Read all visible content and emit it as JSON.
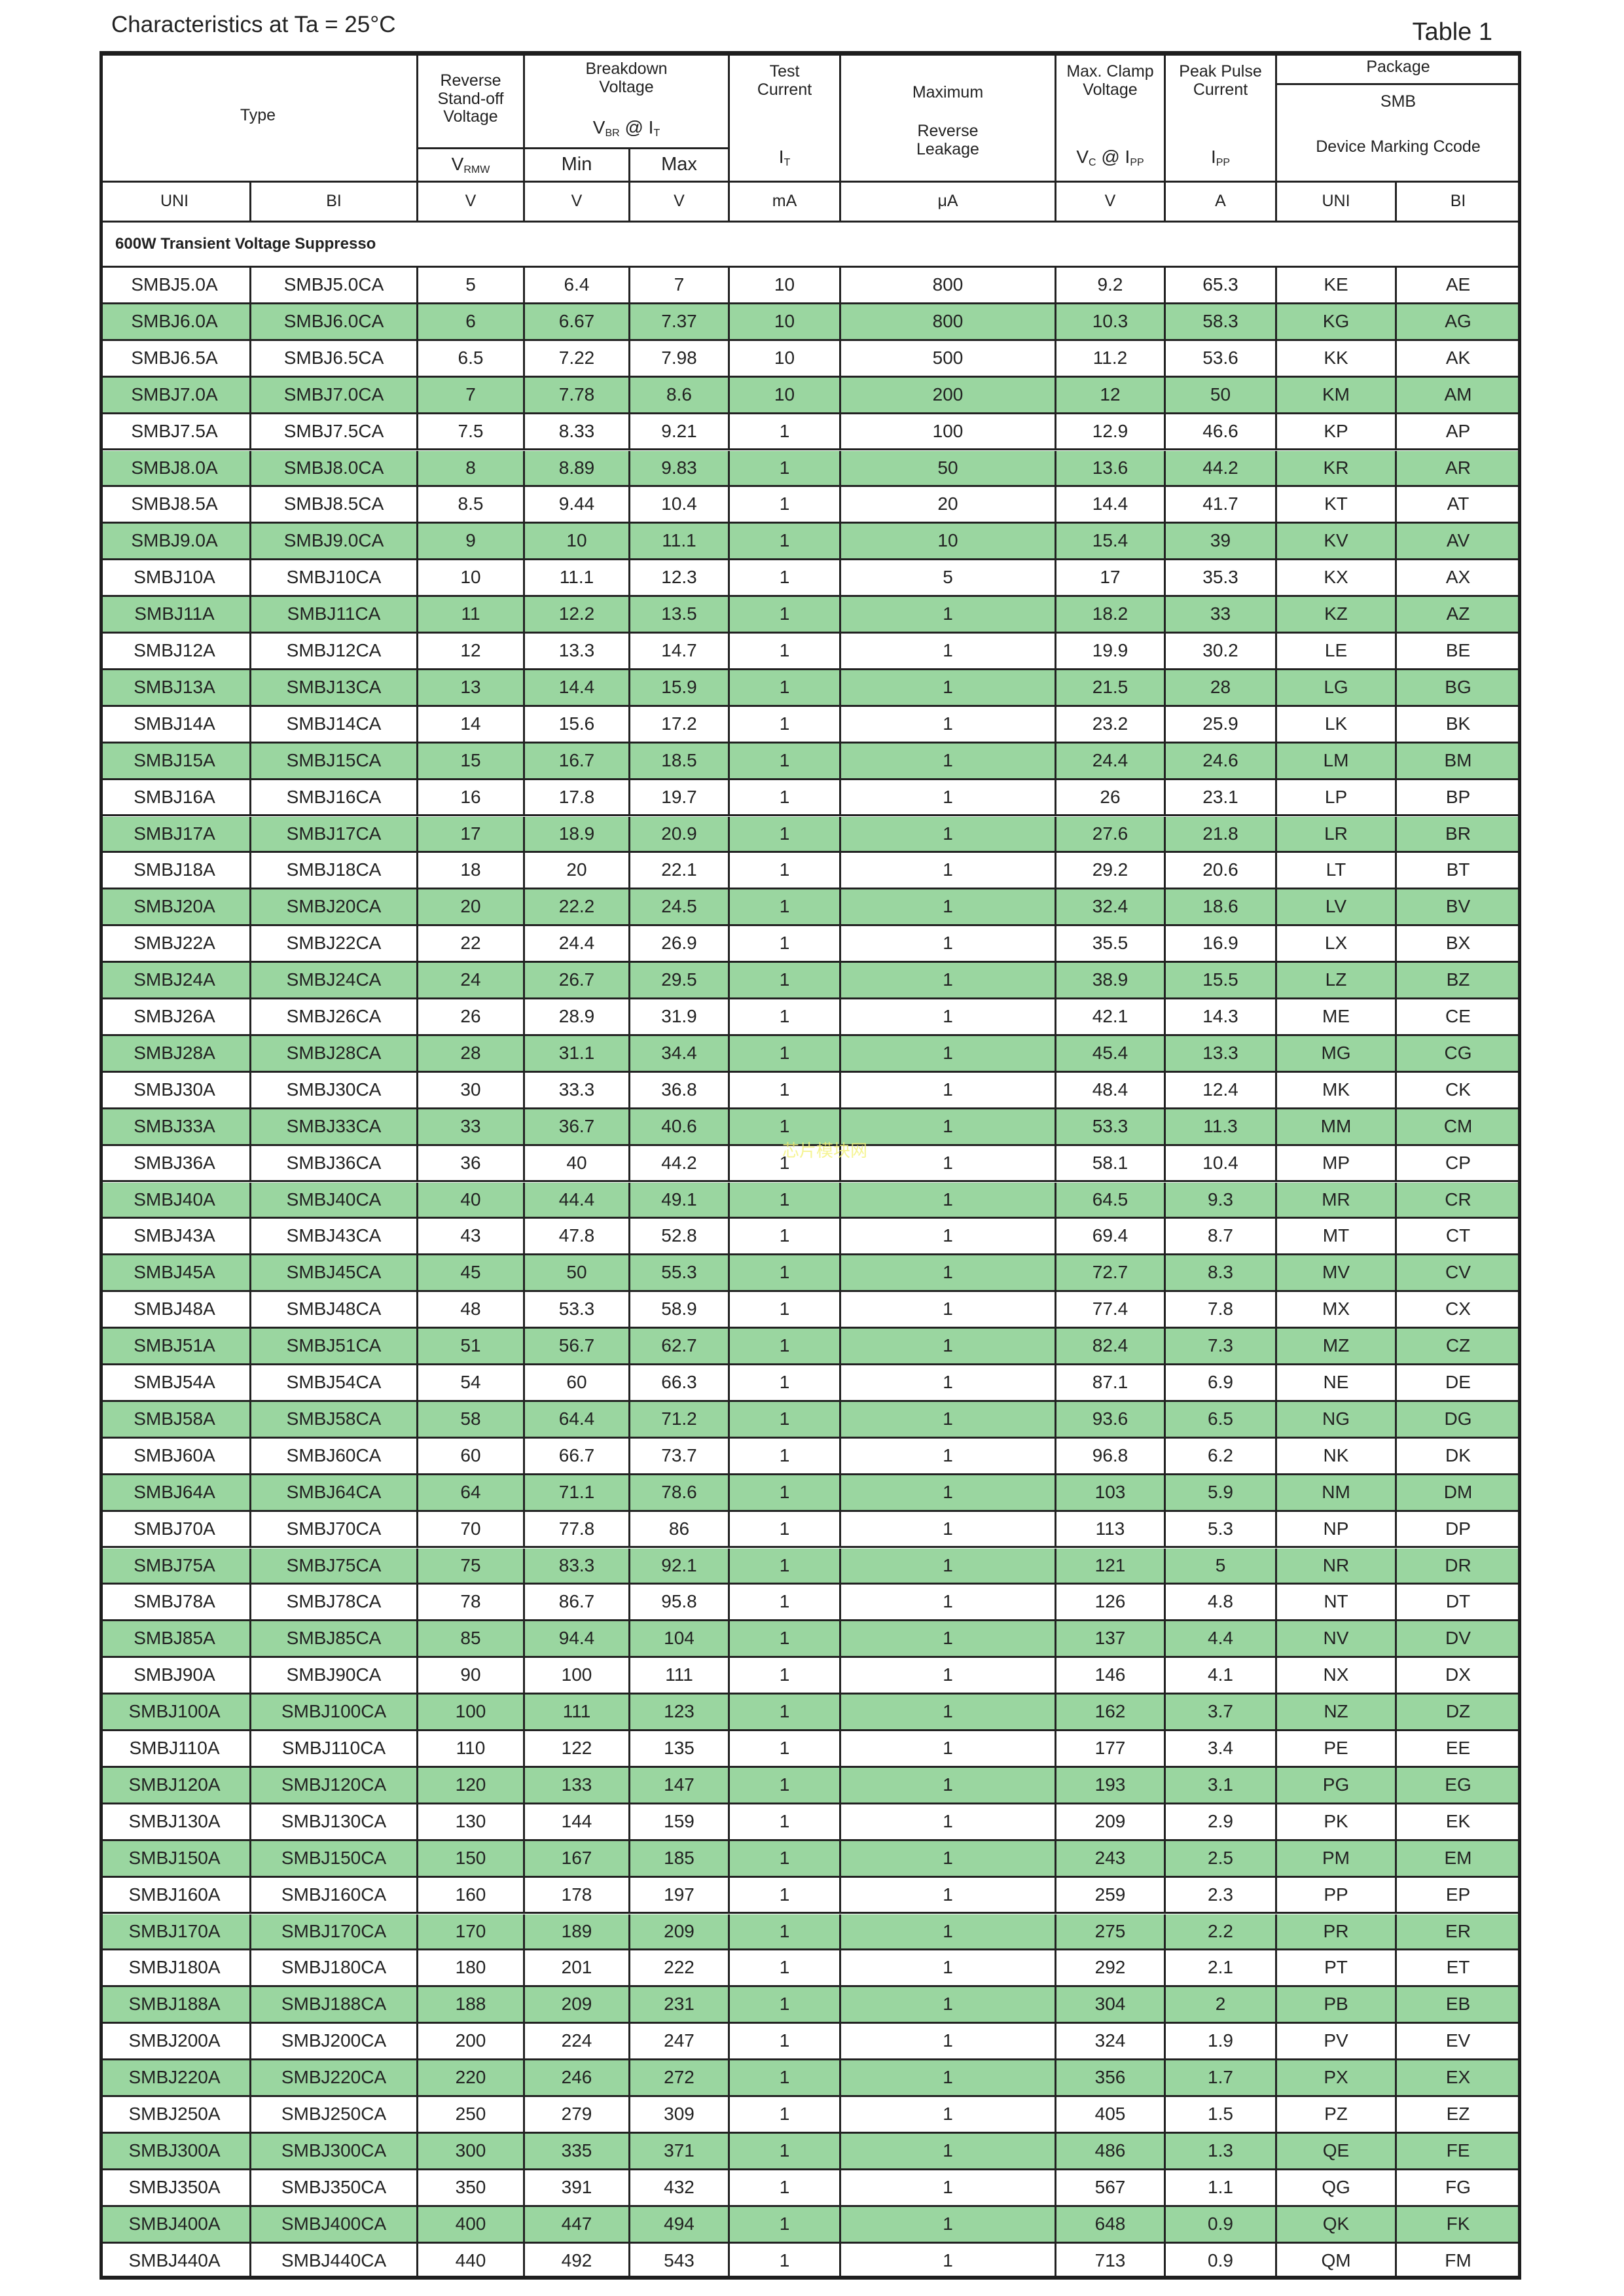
{
  "title": "Characteristics at Ta = 25°C",
  "table_label": "Table 1",
  "watermark": "芯片模块网",
  "colors": {
    "row_highlight": "#9ad6a0",
    "border": "#222222"
  },
  "header": {
    "type": "Type",
    "reverse_standoff": [
      "Reverse",
      "Stand-off",
      "Voltage"
    ],
    "vrwm": {
      "main": "V",
      "sub": "RMW"
    },
    "breakdown": [
      "Breakdown",
      "Voltage"
    ],
    "vbr_at_it": {
      "v": "V",
      "v_sub": "BR",
      "at": " @ ",
      "i": "I",
      "i_sub": "T"
    },
    "min": "Min",
    "max": "Max",
    "test_current": [
      "Test",
      "Current"
    ],
    "it": {
      "main": "I",
      "sub": "T"
    },
    "max_leakage_top": "Maximum",
    "max_leakage_bottom": [
      "Reverse",
      "Leakage"
    ],
    "clamp": [
      "Max. Clamp",
      "Voltage"
    ],
    "vc_at_ipp": {
      "v": "V",
      "v_sub": "C",
      "at": " @ ",
      "i": "I",
      "i_sub": "PP"
    },
    "peak_pulse": [
      "Peak Pulse",
      "Current"
    ],
    "ipp": {
      "main": "I",
      "sub": "PP"
    },
    "package": "Package",
    "smb": "SMB",
    "marking": "Device Marking Ccode"
  },
  "units": [
    "UNI",
    "BI",
    "V",
    "V",
    "V",
    "mA",
    "μA",
    "V",
    "A",
    "UNI",
    "BI"
  ],
  "section": "600W Transient Voltage Suppresso",
  "rows": [
    [
      "SMBJ5.0A",
      "SMBJ5.0CA",
      "5",
      "6.4",
      "7",
      "10",
      "800",
      "9.2",
      "65.3",
      "KE",
      "AE"
    ],
    [
      "SMBJ6.0A",
      "SMBJ6.0CA",
      "6",
      "6.67",
      "7.37",
      "10",
      "800",
      "10.3",
      "58.3",
      "KG",
      "AG"
    ],
    [
      "SMBJ6.5A",
      "SMBJ6.5CA",
      "6.5",
      "7.22",
      "7.98",
      "10",
      "500",
      "11.2",
      "53.6",
      "KK",
      "AK"
    ],
    [
      "SMBJ7.0A",
      "SMBJ7.0CA",
      "7",
      "7.78",
      "8.6",
      "10",
      "200",
      "12",
      "50",
      "KM",
      "AM"
    ],
    [
      "SMBJ7.5A",
      "SMBJ7.5CA",
      "7.5",
      "8.33",
      "9.21",
      "1",
      "100",
      "12.9",
      "46.6",
      "KP",
      "AP"
    ],
    [
      "SMBJ8.0A",
      "SMBJ8.0CA",
      "8",
      "8.89",
      "9.83",
      "1",
      "50",
      "13.6",
      "44.2",
      "KR",
      "AR"
    ],
    [
      "SMBJ8.5A",
      "SMBJ8.5CA",
      "8.5",
      "9.44",
      "10.4",
      "1",
      "20",
      "14.4",
      "41.7",
      "KT",
      "AT"
    ],
    [
      "SMBJ9.0A",
      "SMBJ9.0CA",
      "9",
      "10",
      "11.1",
      "1",
      "10",
      "15.4",
      "39",
      "KV",
      "AV"
    ],
    [
      "SMBJ10A",
      "SMBJ10CA",
      "10",
      "11.1",
      "12.3",
      "1",
      "5",
      "17",
      "35.3",
      "KX",
      "AX"
    ],
    [
      "SMBJ11A",
      "SMBJ11CA",
      "11",
      "12.2",
      "13.5",
      "1",
      "1",
      "18.2",
      "33",
      "KZ",
      "AZ"
    ],
    [
      "SMBJ12A",
      "SMBJ12CA",
      "12",
      "13.3",
      "14.7",
      "1",
      "1",
      "19.9",
      "30.2",
      "LE",
      "BE"
    ],
    [
      "SMBJ13A",
      "SMBJ13CA",
      "13",
      "14.4",
      "15.9",
      "1",
      "1",
      "21.5",
      "28",
      "LG",
      "BG"
    ],
    [
      "SMBJ14A",
      "SMBJ14CA",
      "14",
      "15.6",
      "17.2",
      "1",
      "1",
      "23.2",
      "25.9",
      "LK",
      "BK"
    ],
    [
      "SMBJ15A",
      "SMBJ15CA",
      "15",
      "16.7",
      "18.5",
      "1",
      "1",
      "24.4",
      "24.6",
      "LM",
      "BM"
    ],
    [
      "SMBJ16A",
      "SMBJ16CA",
      "16",
      "17.8",
      "19.7",
      "1",
      "1",
      "26",
      "23.1",
      "LP",
      "BP"
    ],
    [
      "SMBJ17A",
      "SMBJ17CA",
      "17",
      "18.9",
      "20.9",
      "1",
      "1",
      "27.6",
      "21.8",
      "LR",
      "BR"
    ],
    [
      "SMBJ18A",
      "SMBJ18CA",
      "18",
      "20",
      "22.1",
      "1",
      "1",
      "29.2",
      "20.6",
      "LT",
      "BT"
    ],
    [
      "SMBJ20A",
      "SMBJ20CA",
      "20",
      "22.2",
      "24.5",
      "1",
      "1",
      "32.4",
      "18.6",
      "LV",
      "BV"
    ],
    [
      "SMBJ22A",
      "SMBJ22CA",
      "22",
      "24.4",
      "26.9",
      "1",
      "1",
      "35.5",
      "16.9",
      "LX",
      "BX"
    ],
    [
      "SMBJ24A",
      "SMBJ24CA",
      "24",
      "26.7",
      "29.5",
      "1",
      "1",
      "38.9",
      "15.5",
      "LZ",
      "BZ"
    ],
    [
      "SMBJ26A",
      "SMBJ26CA",
      "26",
      "28.9",
      "31.9",
      "1",
      "1",
      "42.1",
      "14.3",
      "ME",
      "CE"
    ],
    [
      "SMBJ28A",
      "SMBJ28CA",
      "28",
      "31.1",
      "34.4",
      "1",
      "1",
      "45.4",
      "13.3",
      "MG",
      "CG"
    ],
    [
      "SMBJ30A",
      "SMBJ30CA",
      "30",
      "33.3",
      "36.8",
      "1",
      "1",
      "48.4",
      "12.4",
      "MK",
      "CK"
    ],
    [
      "SMBJ33A",
      "SMBJ33CA",
      "33",
      "36.7",
      "40.6",
      "1",
      "1",
      "53.3",
      "11.3",
      "MM",
      "CM"
    ],
    [
      "SMBJ36A",
      "SMBJ36CA",
      "36",
      "40",
      "44.2",
      "1",
      "1",
      "58.1",
      "10.4",
      "MP",
      "CP"
    ],
    [
      "SMBJ40A",
      "SMBJ40CA",
      "40",
      "44.4",
      "49.1",
      "1",
      "1",
      "64.5",
      "9.3",
      "MR",
      "CR"
    ],
    [
      "SMBJ43A",
      "SMBJ43CA",
      "43",
      "47.8",
      "52.8",
      "1",
      "1",
      "69.4",
      "8.7",
      "MT",
      "CT"
    ],
    [
      "SMBJ45A",
      "SMBJ45CA",
      "45",
      "50",
      "55.3",
      "1",
      "1",
      "72.7",
      "8.3",
      "MV",
      "CV"
    ],
    [
      "SMBJ48A",
      "SMBJ48CA",
      "48",
      "53.3",
      "58.9",
      "1",
      "1",
      "77.4",
      "7.8",
      "MX",
      "CX"
    ],
    [
      "SMBJ51A",
      "SMBJ51CA",
      "51",
      "56.7",
      "62.7",
      "1",
      "1",
      "82.4",
      "7.3",
      "MZ",
      "CZ"
    ],
    [
      "SMBJ54A",
      "SMBJ54CA",
      "54",
      "60",
      "66.3",
      "1",
      "1",
      "87.1",
      "6.9",
      "NE",
      "DE"
    ],
    [
      "SMBJ58A",
      "SMBJ58CA",
      "58",
      "64.4",
      "71.2",
      "1",
      "1",
      "93.6",
      "6.5",
      "NG",
      "DG"
    ],
    [
      "SMBJ60A",
      "SMBJ60CA",
      "60",
      "66.7",
      "73.7",
      "1",
      "1",
      "96.8",
      "6.2",
      "NK",
      "DK"
    ],
    [
      "SMBJ64A",
      "SMBJ64CA",
      "64",
      "71.1",
      "78.6",
      "1",
      "1",
      "103",
      "5.9",
      "NM",
      "DM"
    ],
    [
      "SMBJ70A",
      "SMBJ70CA",
      "70",
      "77.8",
      "86",
      "1",
      "1",
      "113",
      "5.3",
      "NP",
      "DP"
    ],
    [
      "SMBJ75A",
      "SMBJ75CA",
      "75",
      "83.3",
      "92.1",
      "1",
      "1",
      "121",
      "5",
      "NR",
      "DR"
    ],
    [
      "SMBJ78A",
      "SMBJ78CA",
      "78",
      "86.7",
      "95.8",
      "1",
      "1",
      "126",
      "4.8",
      "NT",
      "DT"
    ],
    [
      "SMBJ85A",
      "SMBJ85CA",
      "85",
      "94.4",
      "104",
      "1",
      "1",
      "137",
      "4.4",
      "NV",
      "DV"
    ],
    [
      "SMBJ90A",
      "SMBJ90CA",
      "90",
      "100",
      "111",
      "1",
      "1",
      "146",
      "4.1",
      "NX",
      "DX"
    ],
    [
      "SMBJ100A",
      "SMBJ100CA",
      "100",
      "111",
      "123",
      "1",
      "1",
      "162",
      "3.7",
      "NZ",
      "DZ"
    ],
    [
      "SMBJ110A",
      "SMBJ110CA",
      "110",
      "122",
      "135",
      "1",
      "1",
      "177",
      "3.4",
      "PE",
      "EE"
    ],
    [
      "SMBJ120A",
      "SMBJ120CA",
      "120",
      "133",
      "147",
      "1",
      "1",
      "193",
      "3.1",
      "PG",
      "EG"
    ],
    [
      "SMBJ130A",
      "SMBJ130CA",
      "130",
      "144",
      "159",
      "1",
      "1",
      "209",
      "2.9",
      "PK",
      "EK"
    ],
    [
      "SMBJ150A",
      "SMBJ150CA",
      "150",
      "167",
      "185",
      "1",
      "1",
      "243",
      "2.5",
      "PM",
      "EM"
    ],
    [
      "SMBJ160A",
      "SMBJ160CA",
      "160",
      "178",
      "197",
      "1",
      "1",
      "259",
      "2.3",
      "PP",
      "EP"
    ],
    [
      "SMBJ170A",
      "SMBJ170CA",
      "170",
      "189",
      "209",
      "1",
      "1",
      "275",
      "2.2",
      "PR",
      "ER"
    ],
    [
      "SMBJ180A",
      "SMBJ180CA",
      "180",
      "201",
      "222",
      "1",
      "1",
      "292",
      "2.1",
      "PT",
      "ET"
    ],
    [
      "SMBJ188A",
      "SMBJ188CA",
      "188",
      "209",
      "231",
      "1",
      "1",
      "304",
      "2",
      "PB",
      "EB"
    ],
    [
      "SMBJ200A",
      "SMBJ200CA",
      "200",
      "224",
      "247",
      "1",
      "1",
      "324",
      "1.9",
      "PV",
      "EV"
    ],
    [
      "SMBJ220A",
      "SMBJ220CA",
      "220",
      "246",
      "272",
      "1",
      "1",
      "356",
      "1.7",
      "PX",
      "EX"
    ],
    [
      "SMBJ250A",
      "SMBJ250CA",
      "250",
      "279",
      "309",
      "1",
      "1",
      "405",
      "1.5",
      "PZ",
      "EZ"
    ],
    [
      "SMBJ300A",
      "SMBJ300CA",
      "300",
      "335",
      "371",
      "1",
      "1",
      "486",
      "1.3",
      "QE",
      "FE"
    ],
    [
      "SMBJ350A",
      "SMBJ350CA",
      "350",
      "391",
      "432",
      "1",
      "1",
      "567",
      "1.1",
      "QG",
      "FG"
    ],
    [
      "SMBJ400A",
      "SMBJ400CA",
      "400",
      "447",
      "494",
      "1",
      "1",
      "648",
      "0.9",
      "QK",
      "FK"
    ],
    [
      "SMBJ440A",
      "SMBJ440CA",
      "440",
      "492",
      "543",
      "1",
      "1",
      "713",
      "0.9",
      "QM",
      "FM"
    ]
  ]
}
